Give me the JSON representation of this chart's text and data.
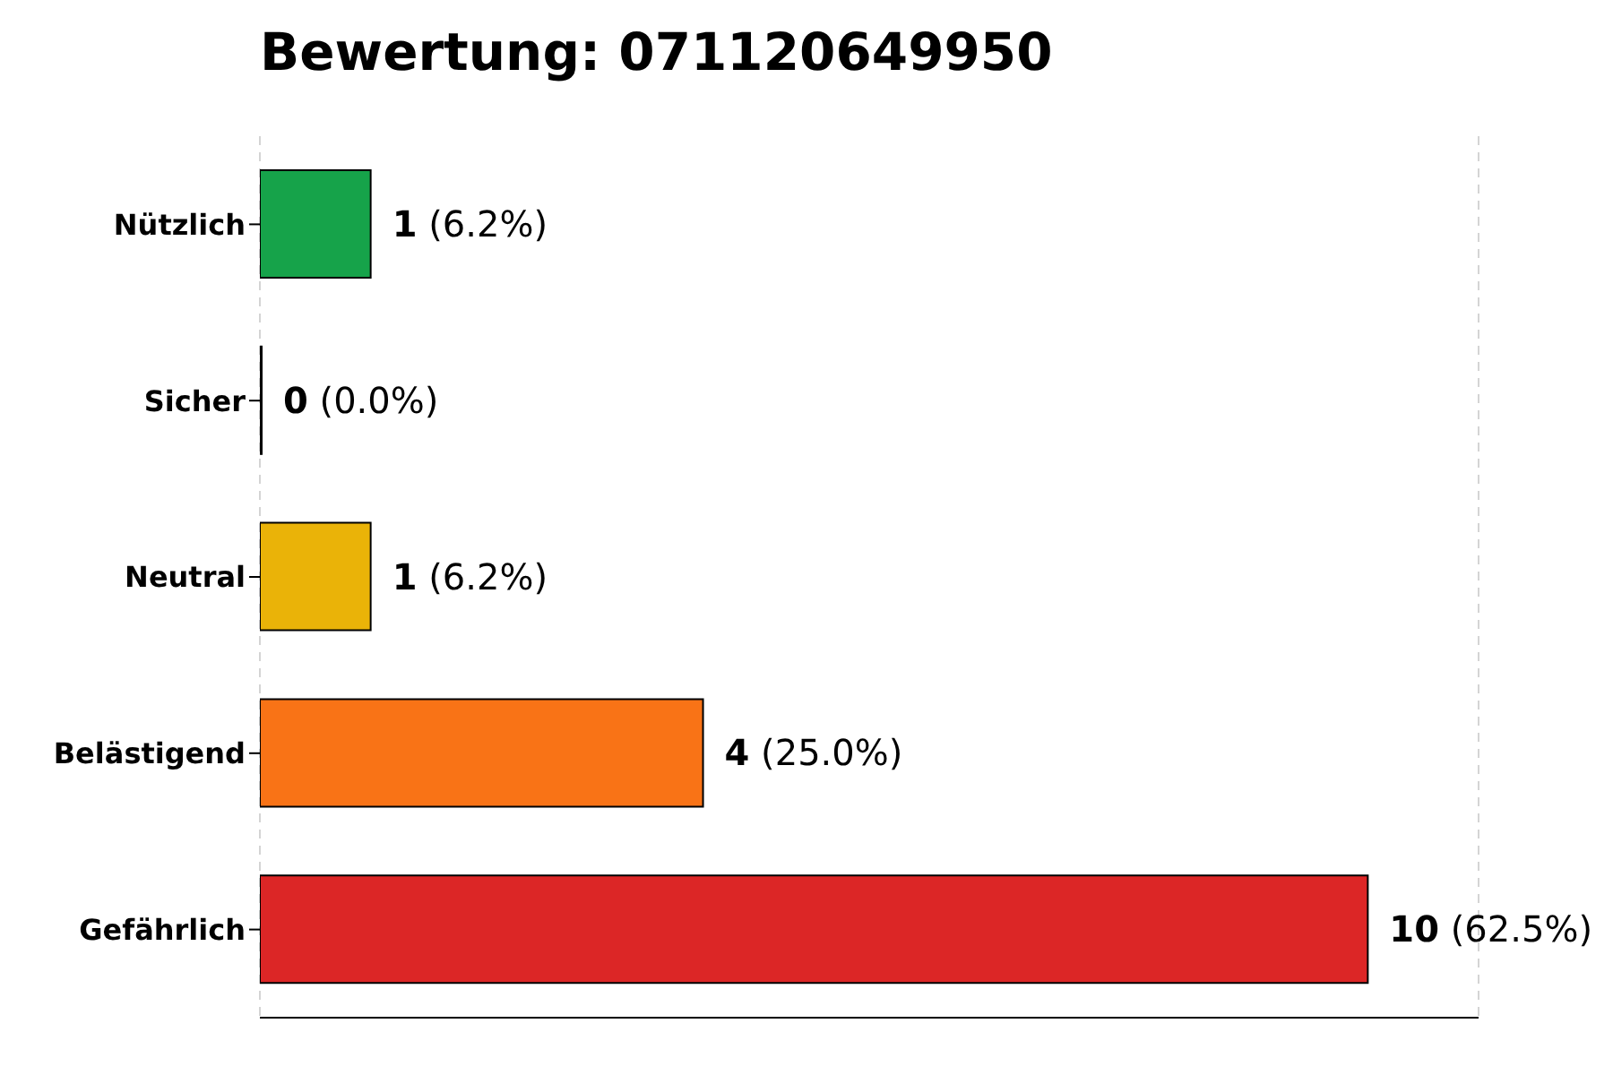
{
  "chart_data": {
    "type": "bar",
    "orientation": "horizontal",
    "title": "Bewertung: 071120649950",
    "categories": [
      "Nützlich",
      "Sicher",
      "Neutral",
      "Belästigend",
      "Gefährlich"
    ],
    "values": [
      1,
      0,
      1,
      4,
      10
    ],
    "colors": [
      "#16a34a",
      "#9ca3af",
      "#eab308",
      "#f97316",
      "#dc2626"
    ],
    "value_labels": [
      "1 (6.2%)",
      "0 (0.0%)",
      "1 (6.2%)",
      "4 (25.0%)",
      "10 (62.5%)"
    ],
    "xlim": [
      0,
      11
    ],
    "tick_labels": "y",
    "grid": "x"
  }
}
